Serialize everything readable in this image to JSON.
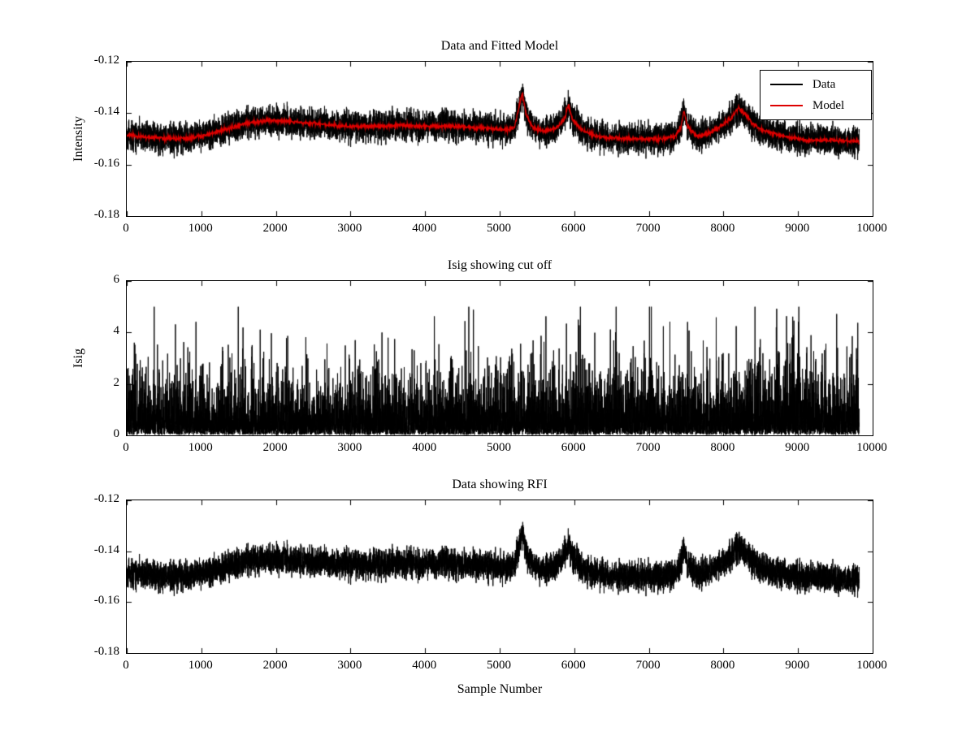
{
  "figure": {
    "background": "#ffffff",
    "axes_color": "#000000"
  },
  "chart_data": [
    {
      "kind": "data_model",
      "type": "line",
      "title": "Data and Fitted Model",
      "ylabel": "Intensity",
      "xlim": [
        0,
        10000
      ],
      "ylim": [
        -0.18,
        -0.12
      ],
      "yticks": {
        "values": [
          -0.18,
          -0.16,
          -0.14,
          -0.12
        ],
        "labels": [
          "-0.18",
          "-0.16",
          "-0.14",
          "-0.12"
        ]
      },
      "xticks": {
        "values": [
          0,
          1000,
          2000,
          3000,
          4000,
          5000,
          6000,
          7000,
          8000,
          9000,
          10000
        ],
        "labels": [
          "0",
          "1000",
          "2000",
          "3000",
          "4000",
          "5000",
          "6000",
          "7000",
          "8000",
          "9000",
          "10000"
        ]
      },
      "n_points": 9820,
      "noise_sigma": 0.0028,
      "seed": 42,
      "legend": {
        "position": "northeast",
        "entries": [
          {
            "label": "Data",
            "color": "#000000"
          },
          {
            "label": "Model",
            "color": "#dd0000"
          }
        ]
      },
      "series": [
        {
          "name": "Data",
          "color": "#000000",
          "role": "noisy-data"
        },
        {
          "name": "Model",
          "color": "#dd0000",
          "role": "fitted-model",
          "keypoints": [
            [
              0,
              -0.1485
            ],
            [
              300,
              -0.1495
            ],
            [
              700,
              -0.15
            ],
            [
              1000,
              -0.149
            ],
            [
              1300,
              -0.1465
            ],
            [
              1600,
              -0.144
            ],
            [
              1900,
              -0.1428
            ],
            [
              2200,
              -0.1432
            ],
            [
              2500,
              -0.144
            ],
            [
              2800,
              -0.1448
            ],
            [
              3100,
              -0.1452
            ],
            [
              3400,
              -0.145
            ],
            [
              3700,
              -0.1448
            ],
            [
              4000,
              -0.1452
            ],
            [
              4300,
              -0.145
            ],
            [
              4600,
              -0.1455
            ],
            [
              4900,
              -0.146
            ],
            [
              5100,
              -0.1465
            ],
            [
              5200,
              -0.1455
            ],
            [
              5300,
              -0.132
            ],
            [
              5360,
              -0.141
            ],
            [
              5450,
              -0.146
            ],
            [
              5600,
              -0.147
            ],
            [
              5750,
              -0.146
            ],
            [
              5870,
              -0.142
            ],
            [
              5920,
              -0.137
            ],
            [
              5980,
              -0.1425
            ],
            [
              6100,
              -0.1465
            ],
            [
              6300,
              -0.149
            ],
            [
              6600,
              -0.15
            ],
            [
              6900,
              -0.15
            ],
            [
              7200,
              -0.15
            ],
            [
              7350,
              -0.149
            ],
            [
              7430,
              -0.1455
            ],
            [
              7470,
              -0.139
            ],
            [
              7520,
              -0.1455
            ],
            [
              7650,
              -0.149
            ],
            [
              7800,
              -0.148
            ],
            [
              7950,
              -0.1455
            ],
            [
              8100,
              -0.142
            ],
            [
              8200,
              -0.138
            ],
            [
              8300,
              -0.1405
            ],
            [
              8400,
              -0.1445
            ],
            [
              8550,
              -0.147
            ],
            [
              8800,
              -0.149
            ],
            [
              9100,
              -0.1505
            ],
            [
              9400,
              -0.1505
            ],
            [
              9820,
              -0.151
            ]
          ]
        }
      ]
    },
    {
      "kind": "isig",
      "type": "line",
      "title": "Isig showing cut off",
      "ylabel": "Isig",
      "xlim": [
        0,
        10000
      ],
      "ylim": [
        0,
        6
      ],
      "yticks": {
        "values": [
          0,
          2,
          4,
          6
        ],
        "labels": [
          "0",
          "2",
          "4",
          "6"
        ]
      },
      "xticks": {
        "values": [
          0,
          1000,
          2000,
          3000,
          4000,
          5000,
          6000,
          7000,
          8000,
          9000,
          10000
        ],
        "labels": [
          "0",
          "1000",
          "2000",
          "3000",
          "4000",
          "5000",
          "6000",
          "7000",
          "8000",
          "9000",
          "10000"
        ]
      },
      "n_points": 9820,
      "seed": 7,
      "distribution": "exponential",
      "scale": 0.68,
      "floor": 0.02,
      "clip_max": 5,
      "envelope_keypoints": [
        [
          0,
          1.0
        ],
        [
          3000,
          1.0
        ],
        [
          5000,
          1.05
        ],
        [
          6000,
          1.12
        ],
        [
          7000,
          1.0
        ],
        [
          8000,
          1.05
        ],
        [
          8700,
          1.25
        ],
        [
          9300,
          1.05
        ],
        [
          9820,
          1.0
        ]
      ],
      "series": [
        {
          "name": "Isig",
          "color": "#000000"
        }
      ]
    },
    {
      "kind": "data_only",
      "type": "line",
      "title": "Data showing RFI",
      "xlabel": "Sample Number",
      "xlim": [
        0,
        10000
      ],
      "ylim": [
        -0.18,
        -0.12
      ],
      "yticks": {
        "values": [
          -0.18,
          -0.16,
          -0.14,
          -0.12
        ],
        "labels": [
          "-0.18",
          "-0.16",
          "-0.14",
          "-0.12"
        ]
      },
      "xticks": {
        "values": [
          0,
          1000,
          2000,
          3000,
          4000,
          5000,
          6000,
          7000,
          8000,
          9000,
          10000
        ],
        "labels": [
          "0",
          "1000",
          "2000",
          "3000",
          "4000",
          "5000",
          "6000",
          "7000",
          "8000",
          "9000",
          "10000"
        ]
      },
      "n_points": 9820,
      "noise_sigma": 0.0028,
      "seed": 42,
      "series": [
        {
          "name": "Data",
          "color": "#000000",
          "role": "noisy-data",
          "baseline_keypoints": [
            [
              0,
              -0.1485
            ],
            [
              300,
              -0.1495
            ],
            [
              700,
              -0.15
            ],
            [
              1000,
              -0.149
            ],
            [
              1300,
              -0.1465
            ],
            [
              1600,
              -0.144
            ],
            [
              1900,
              -0.1428
            ],
            [
              2200,
              -0.1432
            ],
            [
              2500,
              -0.144
            ],
            [
              2800,
              -0.1448
            ],
            [
              3100,
              -0.1452
            ],
            [
              3400,
              -0.145
            ],
            [
              3700,
              -0.1448
            ],
            [
              4000,
              -0.1452
            ],
            [
              4300,
              -0.145
            ],
            [
              4600,
              -0.1455
            ],
            [
              4900,
              -0.146
            ],
            [
              5100,
              -0.1465
            ],
            [
              5200,
              -0.1455
            ],
            [
              5300,
              -0.132
            ],
            [
              5360,
              -0.141
            ],
            [
              5450,
              -0.146
            ],
            [
              5600,
              -0.147
            ],
            [
              5750,
              -0.146
            ],
            [
              5870,
              -0.142
            ],
            [
              5920,
              -0.137
            ],
            [
              5980,
              -0.1425
            ],
            [
              6100,
              -0.1465
            ],
            [
              6300,
              -0.149
            ],
            [
              6600,
              -0.15
            ],
            [
              6900,
              -0.15
            ],
            [
              7200,
              -0.15
            ],
            [
              7350,
              -0.149
            ],
            [
              7430,
              -0.1455
            ],
            [
              7470,
              -0.139
            ],
            [
              7520,
              -0.1455
            ],
            [
              7650,
              -0.149
            ],
            [
              7800,
              -0.148
            ],
            [
              7950,
              -0.1455
            ],
            [
              8100,
              -0.142
            ],
            [
              8200,
              -0.138
            ],
            [
              8300,
              -0.1405
            ],
            [
              8400,
              -0.1445
            ],
            [
              8550,
              -0.147
            ],
            [
              8800,
              -0.149
            ],
            [
              9100,
              -0.1505
            ],
            [
              9400,
              -0.1505
            ],
            [
              9820,
              -0.151
            ]
          ]
        }
      ]
    }
  ]
}
